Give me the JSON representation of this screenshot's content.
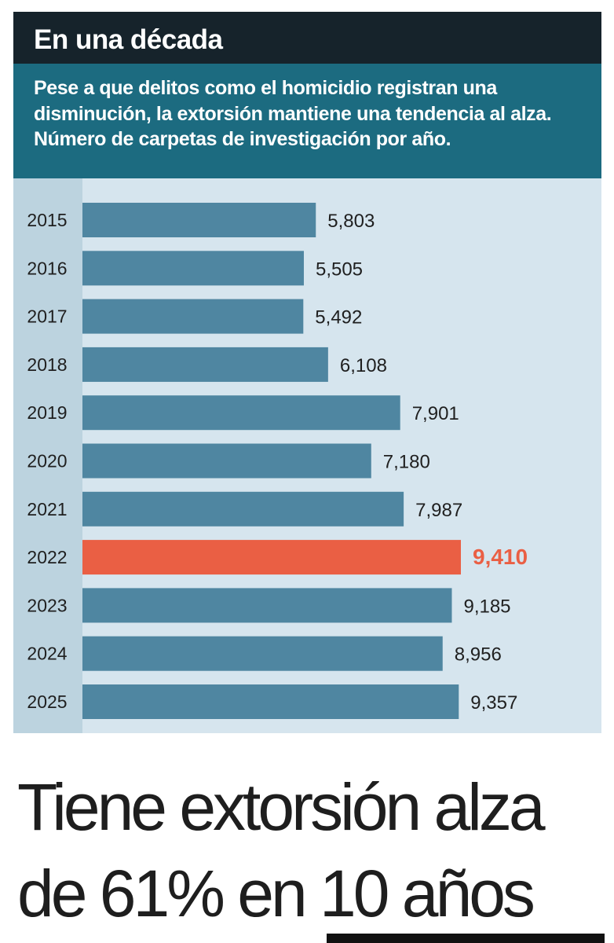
{
  "header": {
    "title": "En una década",
    "subtitle": "Pese a que delitos como el homicidio registran una disminución, la extorsión mantiene una tendencia al alza. Número de carpetas de investigación por año."
  },
  "headline": {
    "line1": "Tiene extorsión alza",
    "line2": "de 61% en 10 años"
  },
  "colors": {
    "bar": "#4f86a1",
    "highlight": "#ea5f44",
    "title_bg": "#16232b",
    "subtitle_bg": "#1c6b80",
    "plot_bg": "#d6e5ee"
  },
  "chart_data": {
    "type": "bar",
    "orientation": "horizontal",
    "categories": [
      "2015",
      "2016",
      "2017",
      "2018",
      "2019",
      "2020",
      "2021",
      "2022",
      "2023",
      "2024",
      "2025"
    ],
    "values": [
      5803,
      5505,
      5492,
      6108,
      7901,
      7180,
      7987,
      9410,
      9185,
      8956,
      9357
    ],
    "value_labels": [
      "5,803",
      "5,505",
      "5,492",
      "6,108",
      "7,901",
      "7,180",
      "7,987",
      "9,410",
      "9,185",
      "8,956",
      "9,357"
    ],
    "highlight_category": "2022",
    "title": "En una década",
    "xlabel": "",
    "ylabel": "",
    "xlim": [
      0,
      9410
    ],
    "grid": false,
    "legend": "none"
  }
}
